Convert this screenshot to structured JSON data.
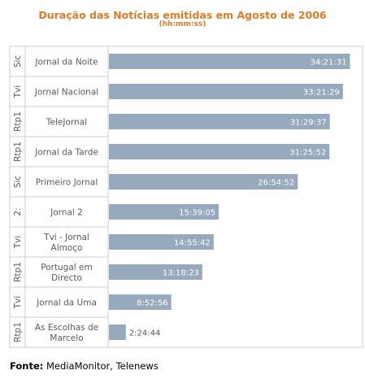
{
  "chart_data": {
    "type": "bar",
    "orientation": "horizontal",
    "title": "Duração das Notícias emitidas em Agosto de 2006",
    "subtitle": "(hh:mm:ss)",
    "source_label": "Fonte:",
    "source_value": "MediaMonitor, Telenews",
    "xlim_seconds": [
      0,
      126000
    ],
    "bar_color": "#97a9bc",
    "label_color_inside": "#ffffff",
    "label_color_outside": "#555555",
    "rows": [
      {
        "channel": "Sic",
        "program": [
          "Jornal da Noite"
        ],
        "value_label": "34:21:31",
        "seconds": 123691
      },
      {
        "channel": "Tvi",
        "program": [
          "Jornal Nacional"
        ],
        "value_label": "33:21:29",
        "seconds": 120089
      },
      {
        "channel": "Rtp1",
        "program": [
          "TeleJornal"
        ],
        "value_label": "31:29:37",
        "seconds": 113377
      },
      {
        "channel": "Rtp1",
        "program": [
          "Jornal da Tarde"
        ],
        "value_label": "31:25:52",
        "seconds": 113152
      },
      {
        "channel": "Sic",
        "program": [
          "Primeiro Jornal"
        ],
        "value_label": "26:54:52",
        "seconds": 96892
      },
      {
        "channel": "2:",
        "program": [
          "Jornal 2"
        ],
        "value_label": "15:39:05",
        "seconds": 56345
      },
      {
        "channel": "Tvi",
        "program": [
          "Tvi - Jornal",
          "Almoço"
        ],
        "value_label": "14:55:42",
        "seconds": 53742
      },
      {
        "channel": "Rtp1",
        "program": [
          "Portugal em",
          "Directo"
        ],
        "value_label": "13:18:23",
        "seconds": 47903
      },
      {
        "channel": "Tvi",
        "program": [
          "Jornal da Uma"
        ],
        "value_label": "8:52:56",
        "seconds": 31976
      },
      {
        "channel": "Rtp1",
        "program": [
          "As Escolhas de",
          "Marcelo"
        ],
        "value_label": "2:24:44",
        "seconds": 8684
      }
    ]
  }
}
